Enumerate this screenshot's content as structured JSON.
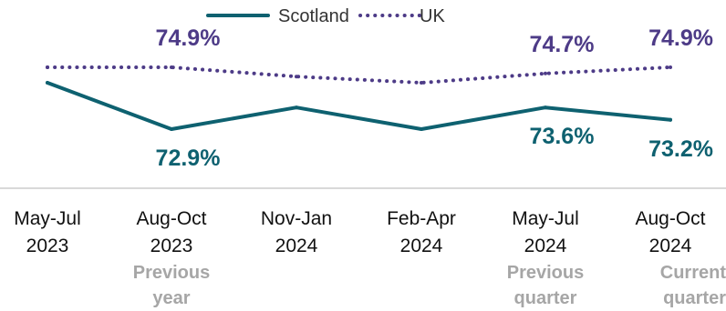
{
  "chart_data": {
    "type": "line",
    "categories": [
      "May-Jul\n2023",
      "Aug-Oct\n2023",
      "Nov-Jan\n2024",
      "Feb-Apr\n2024",
      "May-Jul\n2024",
      "Aug-Oct\n2024"
    ],
    "x_notes": [
      null,
      "Previous\nyear",
      null,
      null,
      "Previous\nquarter",
      "Current\nquarter"
    ],
    "series": [
      {
        "name": "Scotland",
        "color": "#0e6170",
        "style": "solid",
        "values": [
          74.4,
          72.9,
          73.6,
          72.9,
          73.6,
          73.2
        ],
        "value_labels": [
          null,
          "72.9%",
          null,
          null,
          "73.6%",
          "73.2%"
        ],
        "label_side": "below"
      },
      {
        "name": "UK",
        "color": "#4d3b87",
        "style": "dotted",
        "values": [
          74.9,
          74.9,
          74.6,
          74.4,
          74.7,
          74.9
        ],
        "value_labels": [
          null,
          "74.9%",
          null,
          null,
          "74.7%",
          "74.9%"
        ],
        "label_side": "above"
      }
    ]
  }
}
